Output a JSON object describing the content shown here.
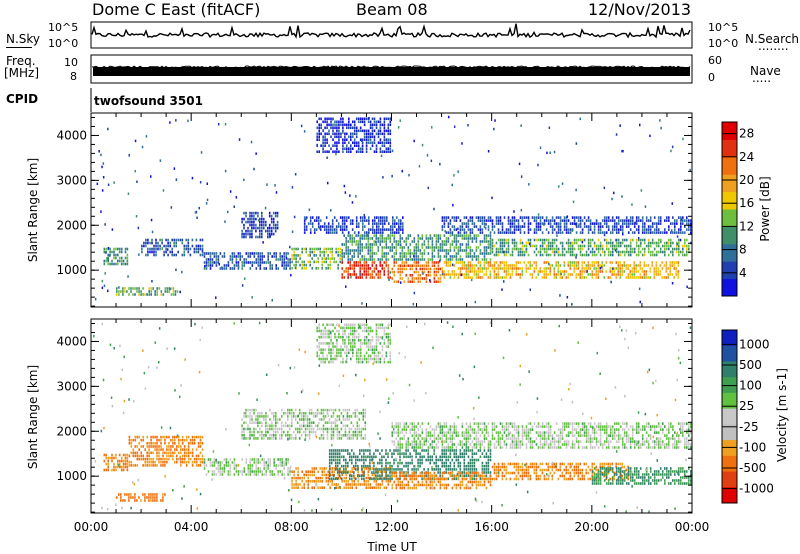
{
  "header": {
    "station": "Dome C East (fitACF)",
    "beam": "Beam 08",
    "date": "12/Nov/2013"
  },
  "strip": {
    "nsky_label": "N.Sky",
    "nsky_ticks": [
      "10^5",
      "10^0"
    ],
    "nsearch_label": "N.Search",
    "freq_label_1": "Freq.",
    "freq_label_2": "[MHz]",
    "freq_ticks": [
      "10",
      "8"
    ],
    "nave_ticks": [
      "60",
      "0"
    ],
    "nave_label": "Nave",
    "cpid_label": "CPID",
    "cpid_value": "twofsound 3501",
    "dots": "........",
    "dots2": "....."
  },
  "colors": {
    "power": [
      "#1010e0",
      "#2040b0",
      "#2f6f9a",
      "#3f8f6a",
      "#6fbf3f",
      "#f0c800",
      "#f0a020",
      "#f07010",
      "#e03010",
      "#e00000"
    ],
    "velocity": [
      "#1020c0",
      "#2050a0",
      "#2f7f6a",
      "#3f9f50",
      "#60c040",
      "#c8c8c8",
      "#c0c0c0",
      "#f0a020",
      "#f07010",
      "#e04010",
      "#e00000"
    ]
  },
  "chart_data": [
    {
      "type": "heatmap",
      "title": "",
      "xlabel": "Time UT",
      "ylabel": "Slant Range [km]",
      "x_ticks": [
        "00:00",
        "04:00",
        "08:00",
        "12:00",
        "16:00",
        "20:00",
        "00:00"
      ],
      "xlim_hours": [
        0,
        24
      ],
      "y_ticks": [
        1000,
        2000,
        3000,
        4000
      ],
      "ylim": [
        180,
        4500
      ],
      "colorbar": {
        "label": "Power [dB]",
        "ticks": [
          4,
          8,
          12,
          16,
          20,
          24,
          28
        ],
        "range": [
          0,
          30
        ]
      },
      "regions": [
        {
          "t": [
            0.5,
            1.5
          ],
          "r": [
            1100,
            1500
          ],
          "value": 10
        },
        {
          "t": [
            1.0,
            3.5
          ],
          "r": [
            420,
            620
          ],
          "value": 12
        },
        {
          "t": [
            2.0,
            4.5
          ],
          "r": [
            1300,
            1700
          ],
          "value": 6
        },
        {
          "t": [
            4.5,
            8.0
          ],
          "r": [
            1000,
            1400
          ],
          "value": 6
        },
        {
          "t": [
            6.0,
            7.5
          ],
          "r": [
            1700,
            2300
          ],
          "value": 4
        },
        {
          "t": [
            8.0,
            10.0
          ],
          "r": [
            1000,
            1500
          ],
          "value": 12
        },
        {
          "t": [
            8.5,
            12.5
          ],
          "r": [
            1800,
            2200
          ],
          "value": 4
        },
        {
          "t": [
            9.0,
            12.0
          ],
          "r": [
            3600,
            4400
          ],
          "value": 3
        },
        {
          "t": [
            10.0,
            12.0
          ],
          "r": [
            800,
            1200
          ],
          "value": 26
        },
        {
          "t": [
            12.0,
            14.0
          ],
          "r": [
            700,
            1200
          ],
          "value": 22
        },
        {
          "t": [
            10.0,
            16.0
          ],
          "r": [
            1200,
            1800
          ],
          "value": 10
        },
        {
          "t": [
            14.0,
            23.5
          ],
          "r": [
            800,
            1200
          ],
          "value": 18
        },
        {
          "t": [
            16.0,
            24.0
          ],
          "r": [
            1300,
            1700
          ],
          "value": 12
        },
        {
          "t": [
            14.0,
            24.0
          ],
          "r": [
            1800,
            2200
          ],
          "value": 5
        }
      ]
    },
    {
      "type": "heatmap",
      "title": "",
      "xlabel": "Time UT",
      "ylabel": "Slant Range [km]",
      "x_ticks": [
        "00:00",
        "04:00",
        "08:00",
        "12:00",
        "16:00",
        "20:00",
        "00:00"
      ],
      "xlim_hours": [
        0,
        24
      ],
      "y_ticks": [
        1000,
        2000,
        3000,
        4000
      ],
      "ylim": [
        180,
        4500
      ],
      "colorbar": {
        "label": "Velocity [m s-1]",
        "ticks": [
          "1000",
          "500",
          "100",
          "25",
          "-25",
          "-100",
          "-500",
          "-1000"
        ]
      },
      "regions": [
        {
          "t": [
            0.5,
            1.5
          ],
          "r": [
            1100,
            1500
          ],
          "value": -200
        },
        {
          "t": [
            1.0,
            3.0
          ],
          "r": [
            420,
            620
          ],
          "value": -300
        },
        {
          "t": [
            1.5,
            4.5
          ],
          "r": [
            1200,
            1900
          ],
          "value": -200
        },
        {
          "t": [
            4.5,
            8.0
          ],
          "r": [
            1000,
            1400
          ],
          "value": 0
        },
        {
          "t": [
            6.0,
            11.0
          ],
          "r": [
            1800,
            2500
          ],
          "value": 0
        },
        {
          "t": [
            9.0,
            12.0
          ],
          "r": [
            3500,
            4400
          ],
          "value": 0
        },
        {
          "t": [
            8.0,
            12.0
          ],
          "r": [
            700,
            1200
          ],
          "value": -200
        },
        {
          "t": [
            9.5,
            16.0
          ],
          "r": [
            900,
            1600
          ],
          "value": 150
        },
        {
          "t": [
            12.0,
            16.0
          ],
          "r": [
            700,
            1100
          ],
          "value": -200
        },
        {
          "t": [
            16.0,
            21.5
          ],
          "r": [
            900,
            1300
          ],
          "value": -200
        },
        {
          "t": [
            20.0,
            24.0
          ],
          "r": [
            800,
            1200
          ],
          "value": 100
        },
        {
          "t": [
            12.0,
            24.0
          ],
          "r": [
            1600,
            2200
          ],
          "value": 0
        }
      ]
    }
  ]
}
